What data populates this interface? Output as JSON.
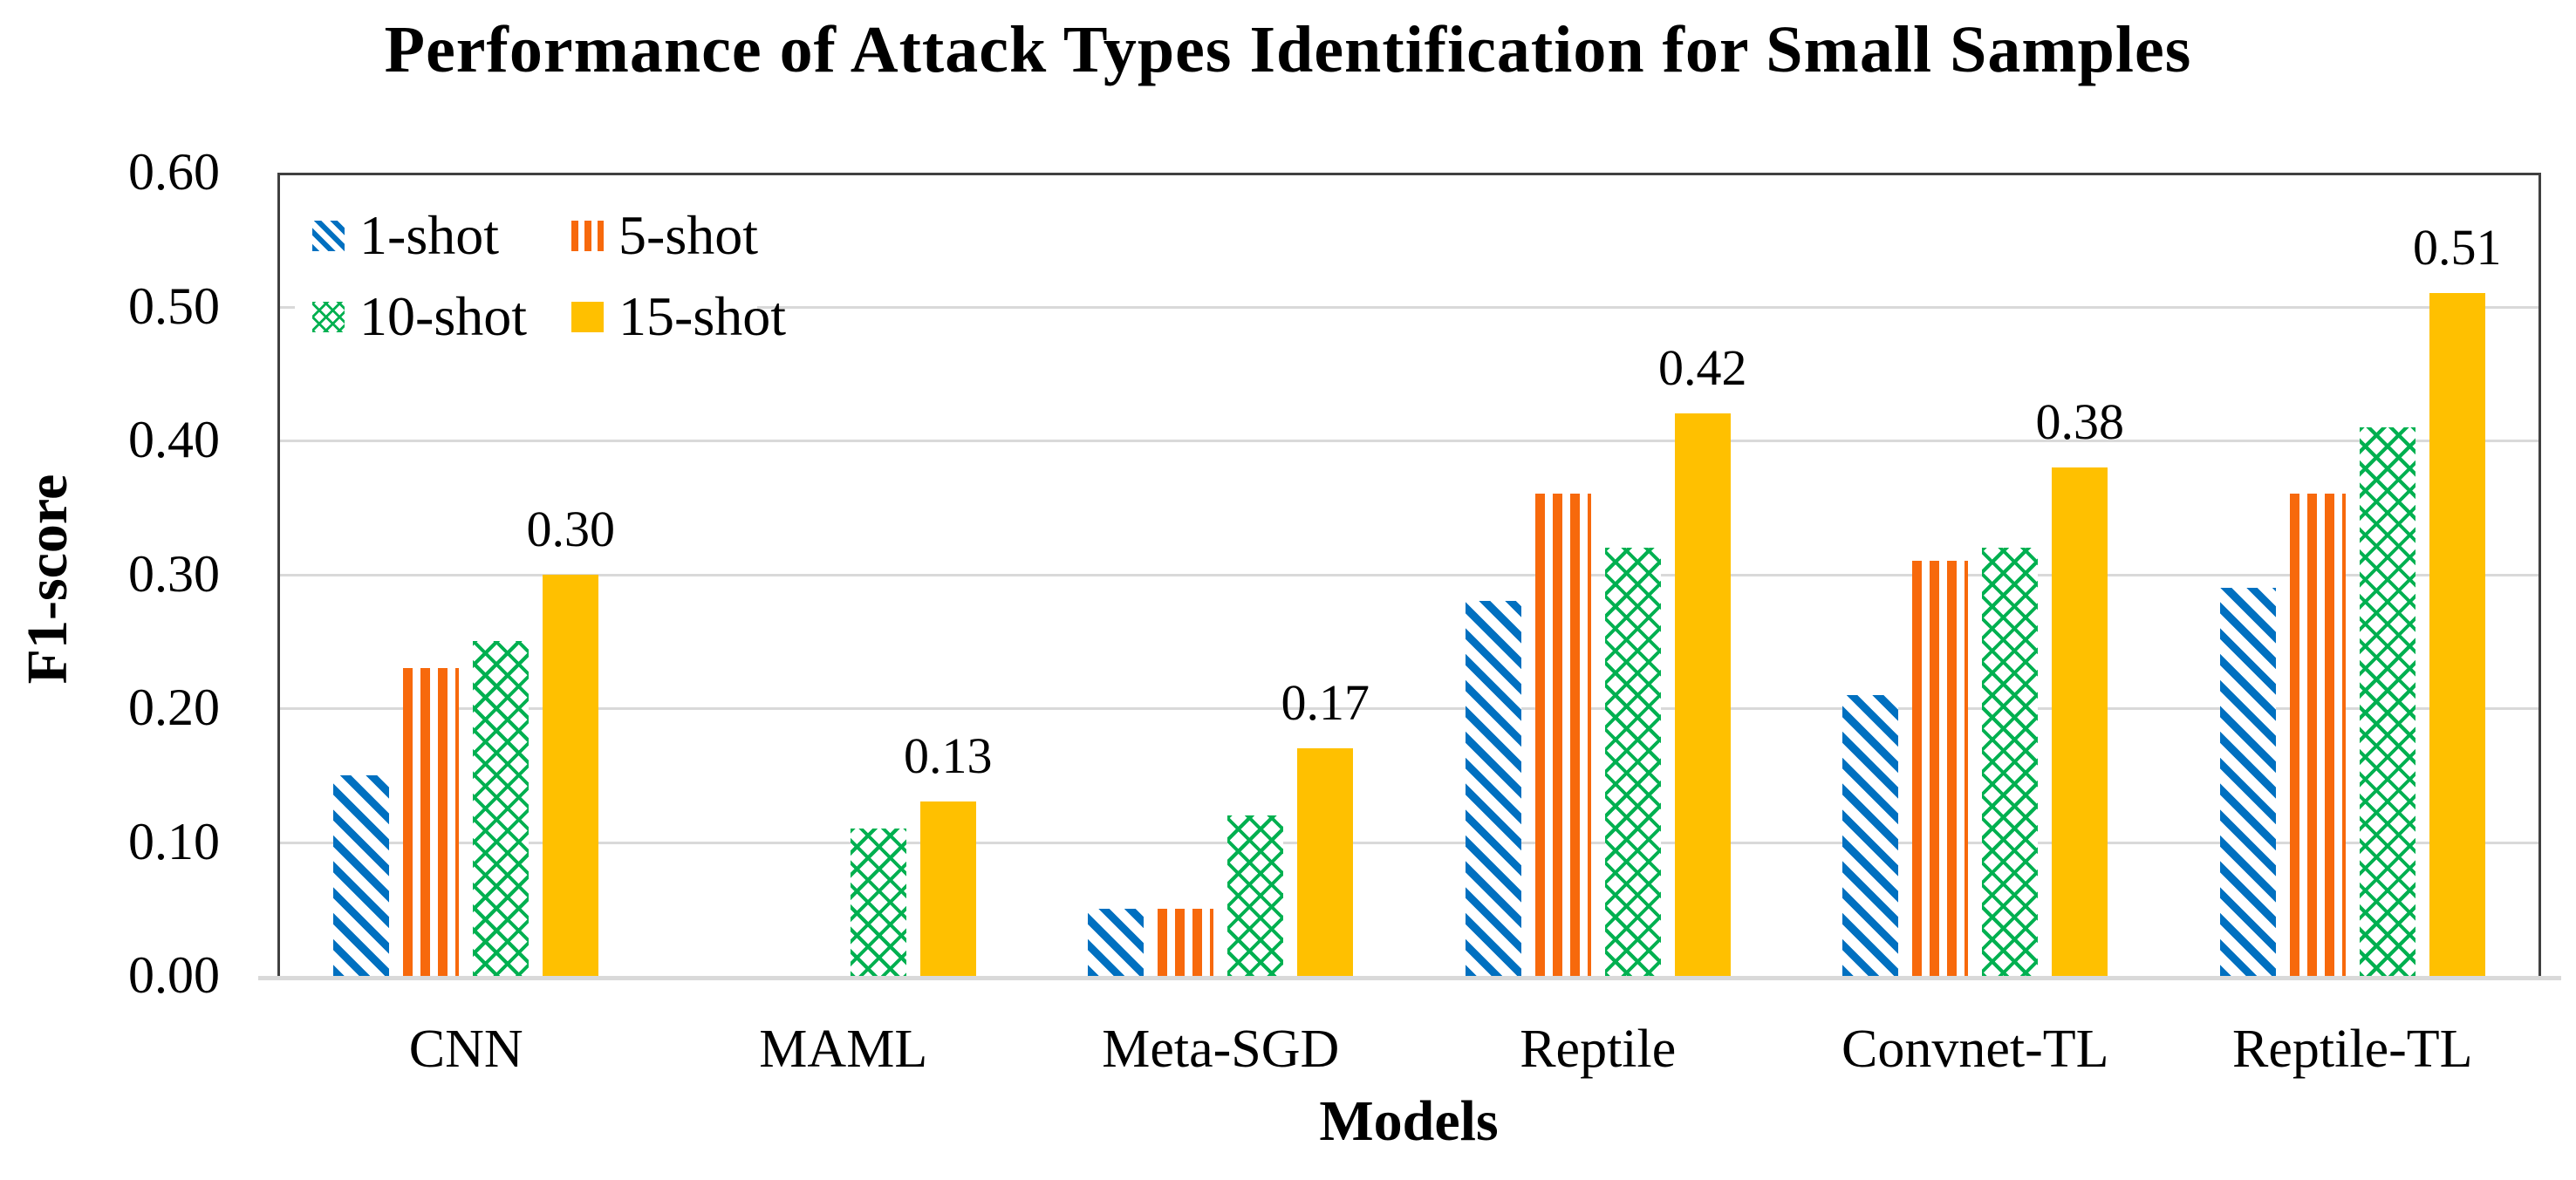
{
  "chart_data": {
    "type": "bar",
    "title": "Performance of Attack Types Identification for Small Samples",
    "xlabel": "Models",
    "ylabel": "F1-score",
    "categories": [
      "CNN",
      "MAML",
      "Meta-SGD",
      "Reptile",
      "Convnet-TL",
      "Reptile-TL"
    ],
    "series": [
      {
        "name": "1-shot",
        "pattern": "diagonal-stripes",
        "color": "#0070C0",
        "values": [
          0.15,
          0,
          0.05,
          0.28,
          0.21,
          0.29
        ]
      },
      {
        "name": "5-shot",
        "pattern": "vertical-stripes",
        "color": "#F7690C",
        "values": [
          0.23,
          0,
          0.05,
          0.36,
          0.31,
          0.36
        ]
      },
      {
        "name": "10-shot",
        "pattern": "crosshatch",
        "color": "#00B050",
        "values": [
          0.25,
          0.11,
          0.12,
          0.32,
          0.32,
          0.41
        ]
      },
      {
        "name": "15-shot",
        "pattern": "solid",
        "color": "#FFC000",
        "values": [
          0.3,
          0.13,
          0.17,
          0.42,
          0.38,
          0.51
        ]
      }
    ],
    "bar_value_labels": {
      "labeled_series": "15-shot",
      "values": [
        "0.30",
        "0.13",
        "0.17",
        "0.42",
        "0.38",
        "0.51"
      ]
    },
    "yticks": [
      "0.00",
      "0.10",
      "0.20",
      "0.30",
      "0.40",
      "0.50",
      "0.60"
    ],
    "ylim": [
      0,
      0.6
    ],
    "grid": "horizontal",
    "legend_position": "top-left-inside",
    "colors": {
      "grid": "#D9D9D9",
      "plot_border": "#404040",
      "axis_line": "#D9D9D9",
      "text": "#000000",
      "background": "#FFFFFF"
    }
  }
}
